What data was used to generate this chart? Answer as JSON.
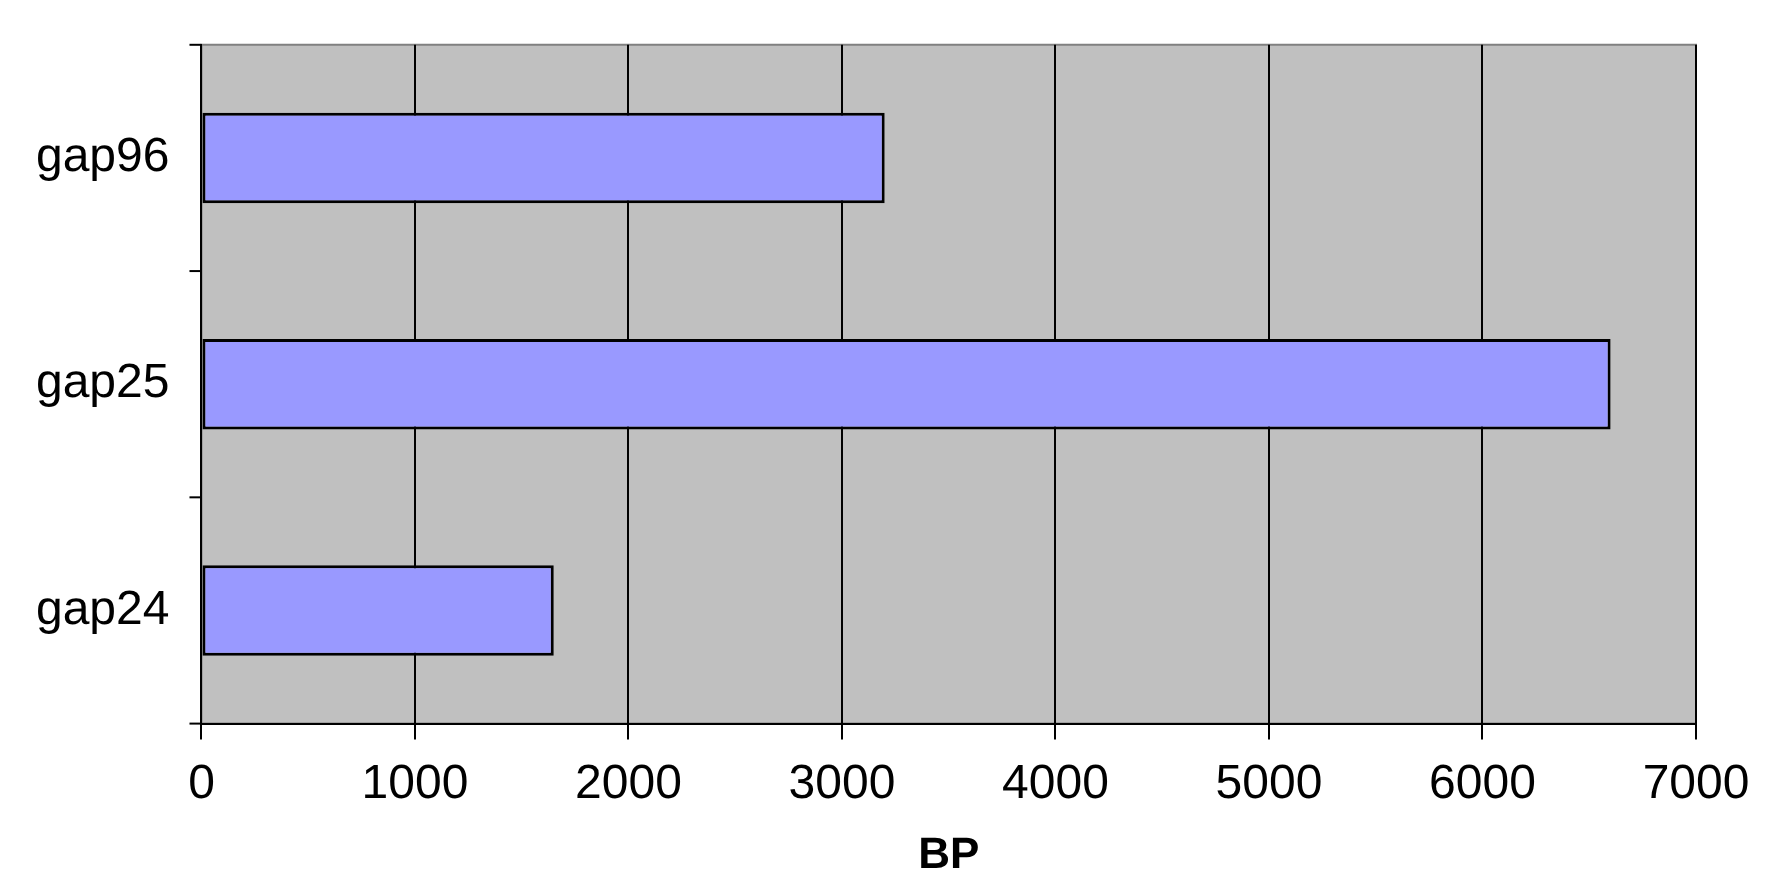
{
  "chart_data": {
    "type": "bar",
    "orientation": "horizontal",
    "categories": [
      "gap96",
      "gap25",
      "gap24"
    ],
    "values": [
      3200,
      6600,
      1650
    ],
    "color": "#9999ff",
    "xlabel": "BP",
    "xlim": [
      0,
      7000
    ],
    "xticks": [
      0,
      1000,
      2000,
      3000,
      4000,
      5000,
      6000,
      7000
    ],
    "grid": "x",
    "legend": false
  }
}
